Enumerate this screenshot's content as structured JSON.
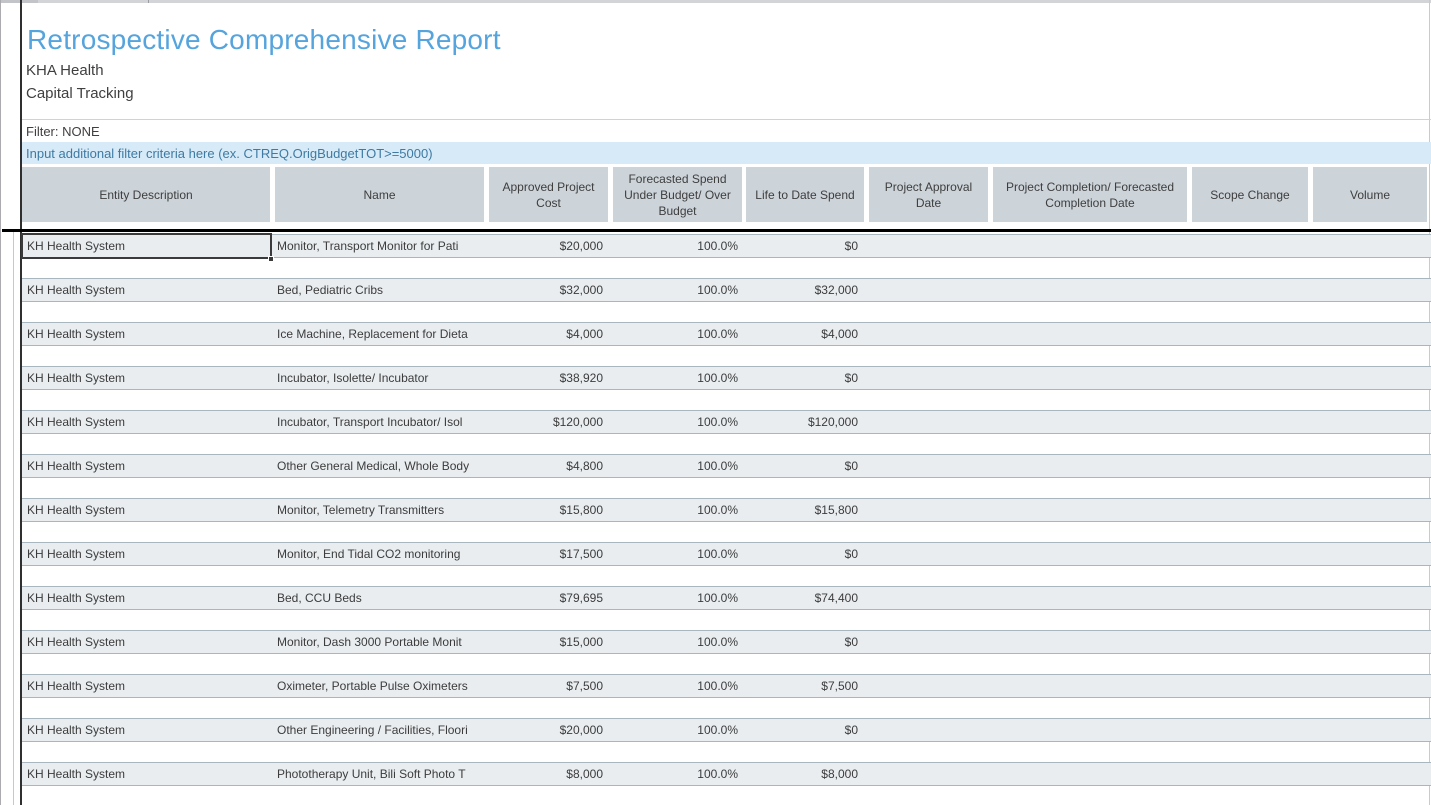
{
  "report": {
    "title": "Retrospective Comprehensive Report",
    "org": "KHA Health",
    "subtitle": "Capital Tracking",
    "filter_status": "Filter: NONE",
    "filter_input_hint": "Input additional filter criteria here (ex. CTREQ.OrigBudgetTOT>=5000)"
  },
  "colors": {
    "title_accent": "#55a4dd",
    "header_bg": "#ccd3d9",
    "row_band_bg": "#e9edf0",
    "row_band_border": "#a8b6c0",
    "filter_bar_bg": "#d7eaf7",
    "filter_bar_text": "#3e7aa3",
    "heavy_rule": "#000000"
  },
  "table": {
    "columns": [
      {
        "label": "Entity Description"
      },
      {
        "label": "Name"
      },
      {
        "label": "Approved Project Cost"
      },
      {
        "label": "Forecasted Spend Under Budget/ Over Budget"
      },
      {
        "label": "Life to Date Spend"
      },
      {
        "label": "Project Approval Date"
      },
      {
        "label": "Project Completion/ Forecasted Completion Date"
      },
      {
        "label": "Scope Change"
      },
      {
        "label": "Volume"
      }
    ],
    "rows": [
      {
        "entity": "KH Health System",
        "name": "Monitor, Transport Monitor for Pati",
        "cost": "$20,000",
        "pct": "100.0%",
        "ltd": "$0",
        "approval_date": "",
        "completion_date": "",
        "scope_change": "",
        "volume": ""
      },
      {
        "entity": "KH Health System",
        "name": "Bed, Pediatric Cribs",
        "cost": "$32,000",
        "pct": "100.0%",
        "ltd": "$32,000",
        "approval_date": "",
        "completion_date": "",
        "scope_change": "",
        "volume": ""
      },
      {
        "entity": "KH Health System",
        "name": "Ice Machine, Replacement for Dieta",
        "cost": "$4,000",
        "pct": "100.0%",
        "ltd": "$4,000",
        "approval_date": "",
        "completion_date": "",
        "scope_change": "",
        "volume": ""
      },
      {
        "entity": "KH Health System",
        "name": "Incubator, Isolette/ Incubator",
        "cost": "$38,920",
        "pct": "100.0%",
        "ltd": "$0",
        "approval_date": "",
        "completion_date": "",
        "scope_change": "",
        "volume": ""
      },
      {
        "entity": "KH Health System",
        "name": "Incubator, Transport Incubator/ Isol",
        "cost": "$120,000",
        "pct": "100.0%",
        "ltd": "$120,000",
        "approval_date": "",
        "completion_date": "",
        "scope_change": "",
        "volume": ""
      },
      {
        "entity": "KH Health System",
        "name": "Other General Medical, Whole Body",
        "cost": "$4,800",
        "pct": "100.0%",
        "ltd": "$0",
        "approval_date": "",
        "completion_date": "",
        "scope_change": "",
        "volume": ""
      },
      {
        "entity": "KH Health System",
        "name": "Monitor, Telemetry Transmitters",
        "cost": "$15,800",
        "pct": "100.0%",
        "ltd": "$15,800",
        "approval_date": "",
        "completion_date": "",
        "scope_change": "",
        "volume": ""
      },
      {
        "entity": "KH Health System",
        "name": "Monitor, End Tidal CO2 monitoring",
        "cost": "$17,500",
        "pct": "100.0%",
        "ltd": "$0",
        "approval_date": "",
        "completion_date": "",
        "scope_change": "",
        "volume": ""
      },
      {
        "entity": "KH Health System",
        "name": "Bed, CCU Beds",
        "cost": "$79,695",
        "pct": "100.0%",
        "ltd": "$74,400",
        "approval_date": "",
        "completion_date": "",
        "scope_change": "",
        "volume": ""
      },
      {
        "entity": "KH Health System",
        "name": "Monitor, Dash 3000 Portable Monit",
        "cost": "$15,000",
        "pct": "100.0%",
        "ltd": "$0",
        "approval_date": "",
        "completion_date": "",
        "scope_change": "",
        "volume": ""
      },
      {
        "entity": "KH Health System",
        "name": "Oximeter, Portable Pulse Oximeters",
        "cost": "$7,500",
        "pct": "100.0%",
        "ltd": "$7,500",
        "approval_date": "",
        "completion_date": "",
        "scope_change": "",
        "volume": ""
      },
      {
        "entity": "KH Health System",
        "name": "Other Engineering / Facilities, Floori",
        "cost": "$20,000",
        "pct": "100.0%",
        "ltd": "$0",
        "approval_date": "",
        "completion_date": "",
        "scope_change": "",
        "volume": ""
      },
      {
        "entity": "KH Health System",
        "name": "Phototherapy Unit, Bili Soft Photo T",
        "cost": "$8,000",
        "pct": "100.0%",
        "ltd": "$8,000",
        "approval_date": "",
        "completion_date": "",
        "scope_change": "",
        "volume": ""
      }
    ]
  }
}
